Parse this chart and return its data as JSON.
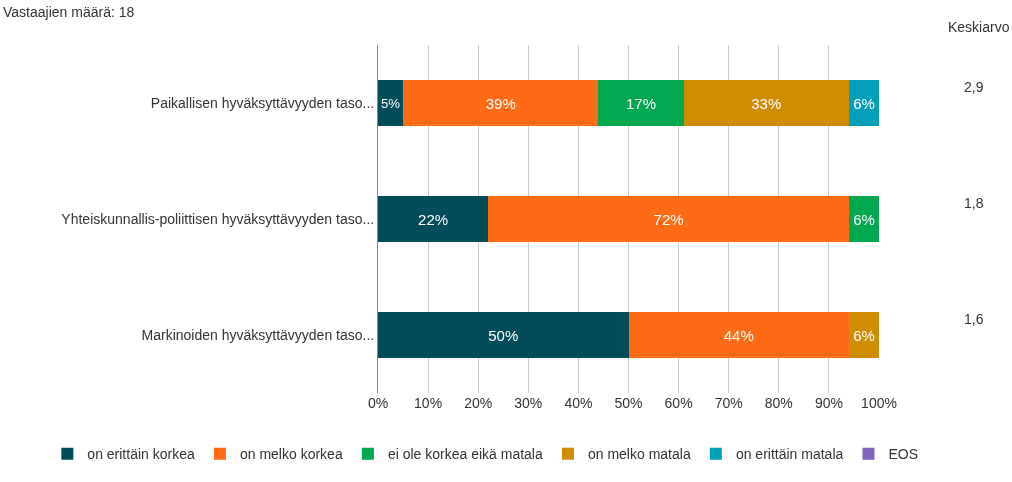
{
  "chart_data": {
    "type": "bar",
    "orientation": "horizontal",
    "stacked": true,
    "title": "Vastaajien määrä: 18",
    "categories": [
      "Paikallisen hyväksyttävyyden taso...",
      "Yhteiskunnallis-poliittisen hyväksyttävyyden taso...",
      "Markinoiden hyväksyttävyyden taso..."
    ],
    "series": [
      {
        "name": "on erittäin korkea",
        "color": "#004c5a",
        "values": [
          5,
          22,
          50
        ],
        "value_labels": [
          "5%",
          "22%",
          "50%"
        ]
      },
      {
        "name": "on melko korkea",
        "color": "#ff6a14",
        "values": [
          39,
          72,
          44
        ],
        "value_labels": [
          "39%",
          "72%",
          "44%"
        ]
      },
      {
        "name": "ei ole korkea eikä matala",
        "color": "#00a84f",
        "values": [
          17,
          6,
          0
        ],
        "value_labels": [
          "17%",
          "6%",
          null
        ]
      },
      {
        "name": "on melko matala",
        "color": "#d08c00",
        "values": [
          33,
          0,
          6
        ],
        "value_labels": [
          "33%",
          null,
          "6%"
        ]
      },
      {
        "name": "on erittäin matala",
        "color": "#00a0b8",
        "values": [
          6,
          0,
          0
        ],
        "value_labels": [
          "6%",
          null,
          null
        ]
      },
      {
        "name": "EOS",
        "color": "#8064c0",
        "values": [
          0,
          0,
          0
        ],
        "value_labels": [
          null,
          null,
          null
        ]
      }
    ],
    "xlim": [
      0,
      100
    ],
    "xticks": [
      {
        "value": 0,
        "label": "0%"
      },
      {
        "value": 10,
        "label": "10%"
      },
      {
        "value": 20,
        "label": "20%"
      },
      {
        "value": 30,
        "label": "30%"
      },
      {
        "value": 40,
        "label": "40%"
      },
      {
        "value": 50,
        "label": "50%"
      },
      {
        "value": 60,
        "label": "60%"
      },
      {
        "value": 70,
        "label": "70%"
      },
      {
        "value": 80,
        "label": "80%"
      },
      {
        "value": 90,
        "label": "90%"
      },
      {
        "value": 100,
        "label": "100%"
      }
    ],
    "grid": "x",
    "legend": "bottom",
    "annotations": [
      "Keskiarvo",
      "2,9",
      "1,8",
      "1,6"
    ]
  }
}
